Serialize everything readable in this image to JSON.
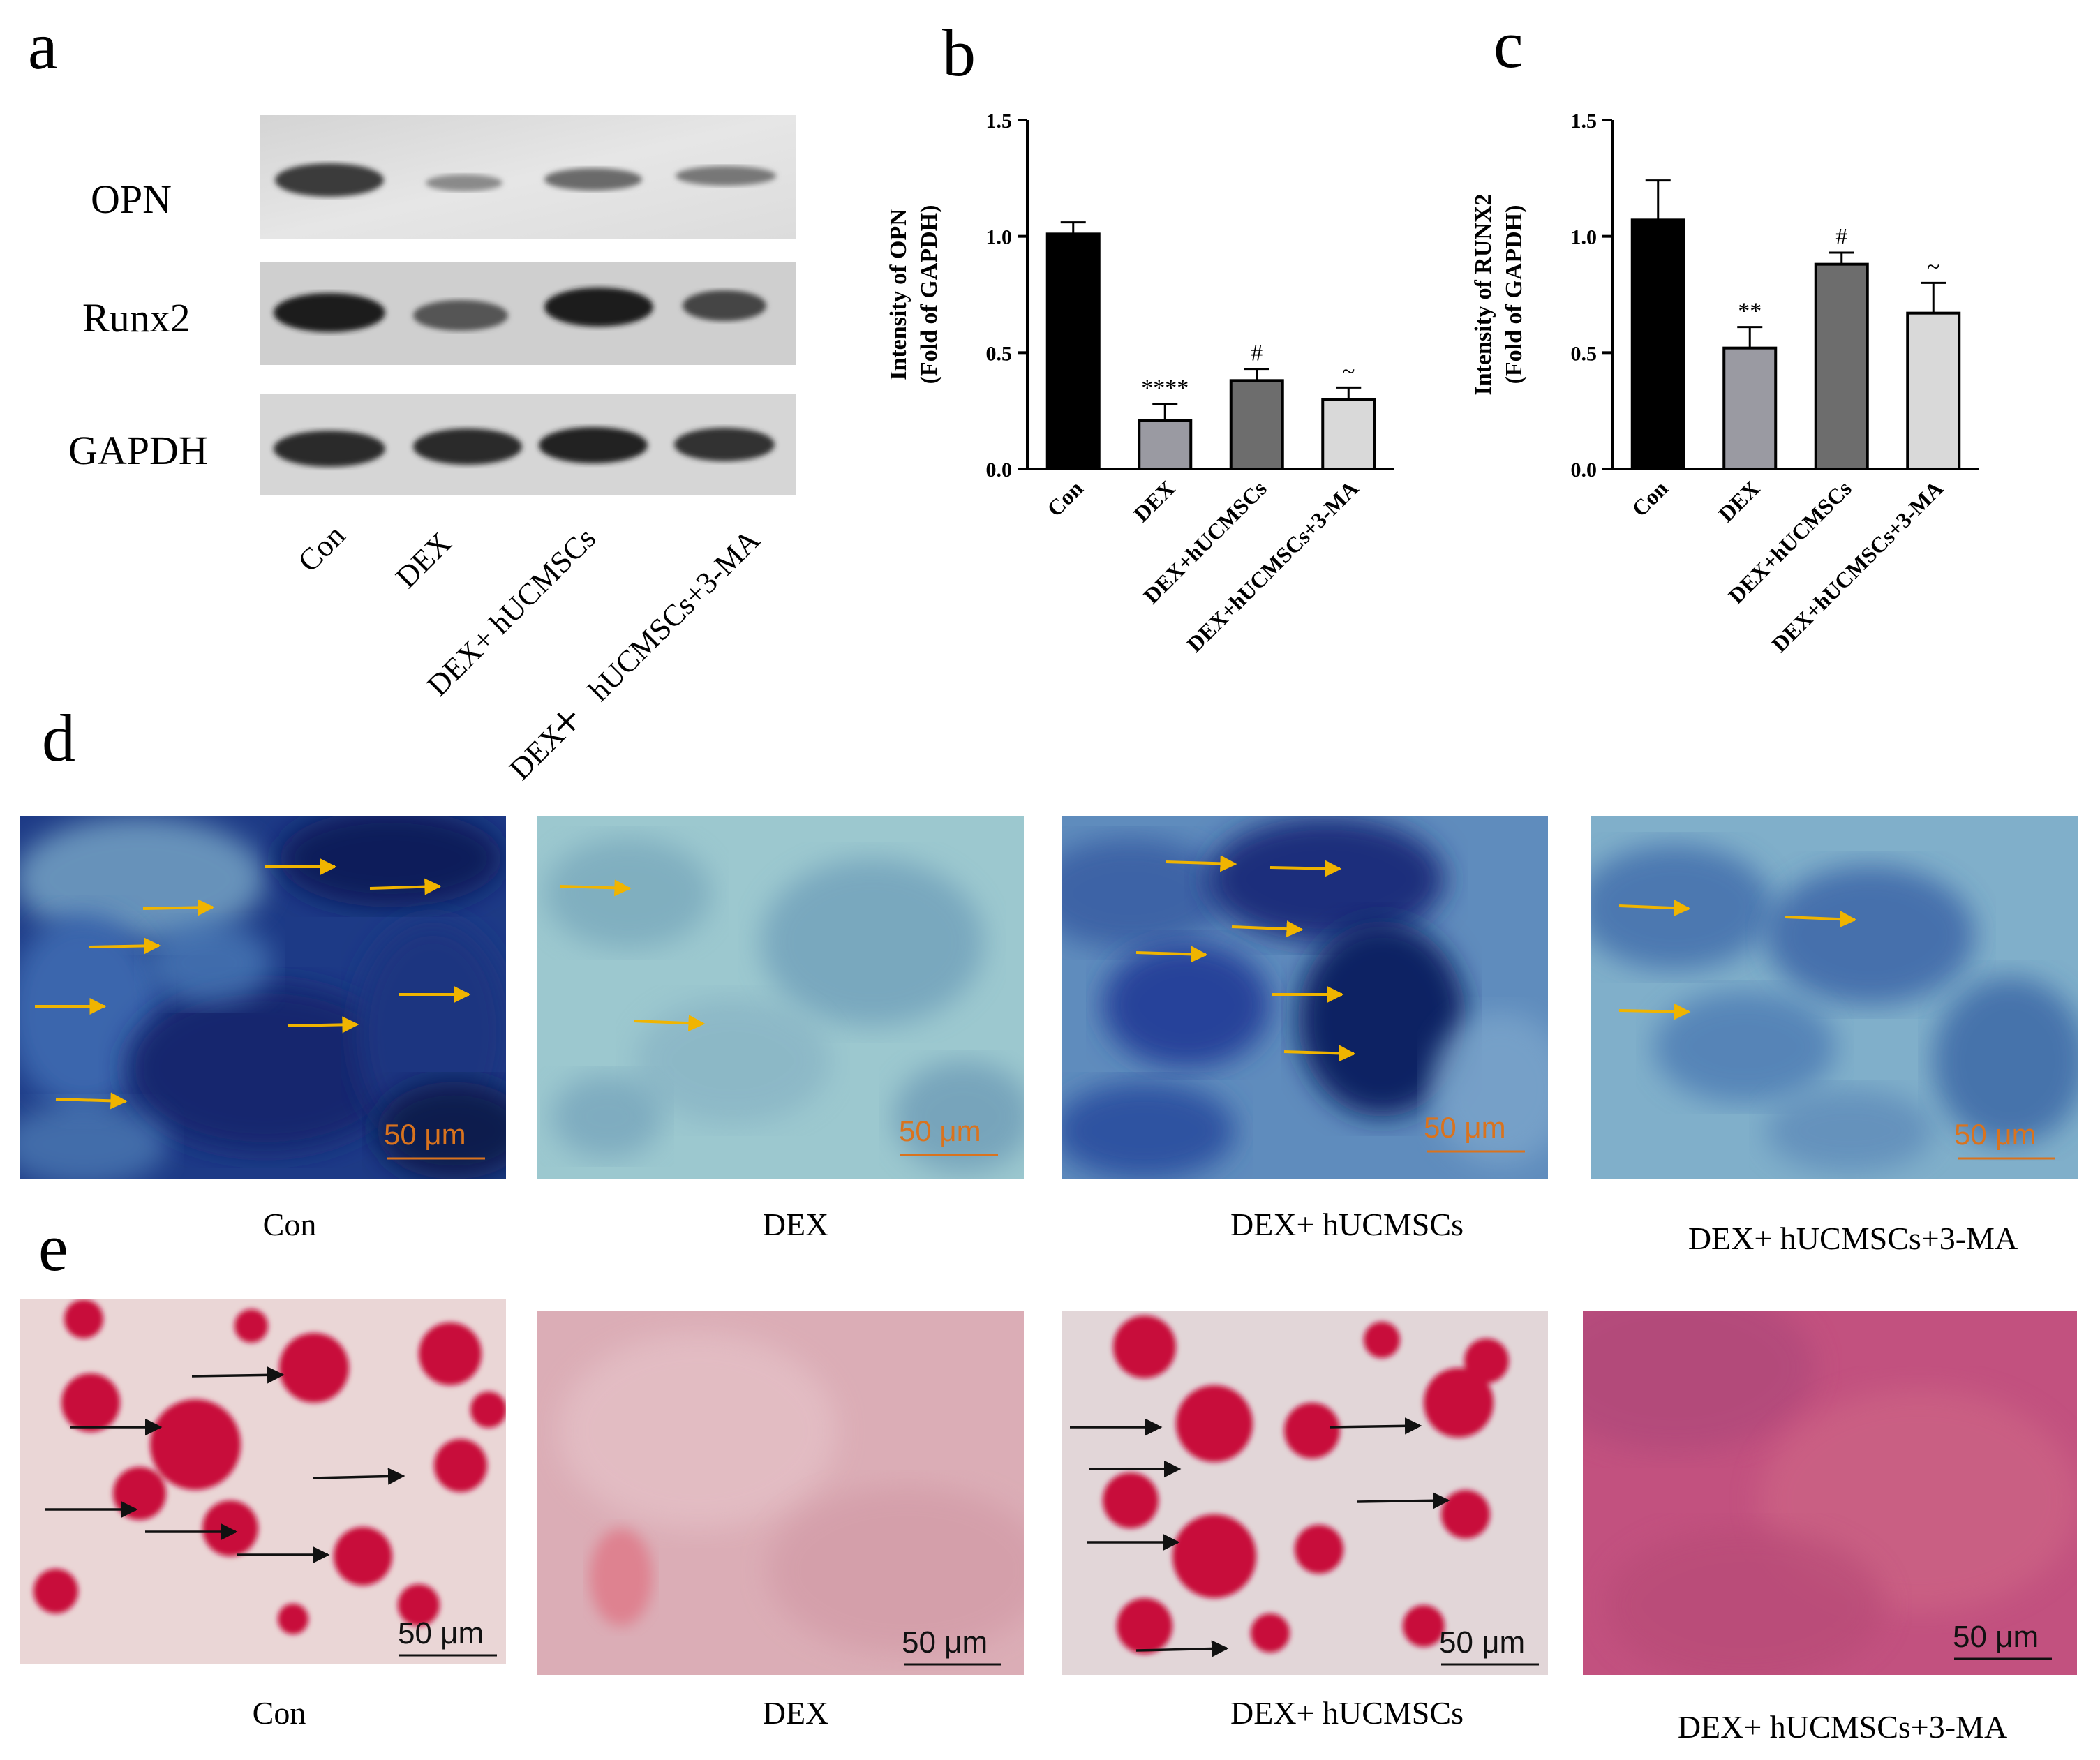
{
  "panel_letters": {
    "a": "a",
    "b": "b",
    "c": "c",
    "d": "d",
    "e": "e"
  },
  "western_blot": {
    "rows": [
      "OPN",
      "Runx2",
      "GAPDH"
    ],
    "lanes": [
      "Con",
      "DEX",
      "DEX+ hUCMSCs",
      "DEX+  hUCMSCs+3-MA"
    ],
    "lane_label_4_prefix": "DEX",
    "lane_label_4_plus": "+",
    "lane_label_4_suffix": "hUCMSCs+3-MA"
  },
  "chart_data": [
    {
      "type": "bar",
      "panel": "b",
      "categories": [
        "Con",
        "DEX",
        "DEX+hUCMSCs",
        "DEX+hUCMSCs+3-MA"
      ],
      "values": [
        1.01,
        0.21,
        0.38,
        0.3
      ],
      "errors": [
        0.05,
        0.07,
        0.05,
        0.05
      ],
      "significance": [
        "",
        "****",
        "#",
        "~"
      ],
      "ylabel_line1": "Intensity of OPN",
      "ylabel_line2": "(Fold of GAPDH)",
      "ylim": [
        0,
        1.5
      ],
      "yticks": [
        "0.0",
        "0.5",
        "1.0",
        "1.5"
      ],
      "colors": [
        "#000000",
        "#9a9aa2",
        "#6d6d6d",
        "#d9d9d9"
      ]
    },
    {
      "type": "bar",
      "panel": "c",
      "categories": [
        "Con",
        "DEX",
        "DEX+hUCMSCs",
        "DEX+hUCMSCs+3-MA"
      ],
      "values": [
        1.07,
        0.52,
        0.88,
        0.67
      ],
      "errors": [
        0.17,
        0.09,
        0.05,
        0.13
      ],
      "significance": [
        "",
        "**",
        "#",
        "~"
      ],
      "ylabel_line1": "Intensity of RUNX2",
      "ylabel_line2": "(Fold of GAPDH)",
      "ylim": [
        0,
        1.5
      ],
      "yticks": [
        "0.0",
        "0.5",
        "1.0",
        "1.5"
      ],
      "colors": [
        "#000000",
        "#9a9aa2",
        "#6d6d6d",
        "#d9d9d9"
      ]
    }
  ],
  "alp_staining": {
    "labels": [
      "Con",
      "DEX",
      "DEX+ hUCMSCs",
      "DEX+  hUCMSCs+3-MA"
    ],
    "scale_bar": "50 μm"
  },
  "ars_staining": {
    "labels": [
      "Con",
      "DEX",
      "DEX+ hUCMSCs",
      "DEX+  hUCMSCs+3-MA"
    ],
    "scale_bar": "50 μm"
  },
  "colors": {
    "arrow_yellow": "#f0b400",
    "arrow_black": "#111111",
    "scale_orange": "#d9731e",
    "alp_blue": "#1a2f8a",
    "ars_red": "#c8103a"
  }
}
